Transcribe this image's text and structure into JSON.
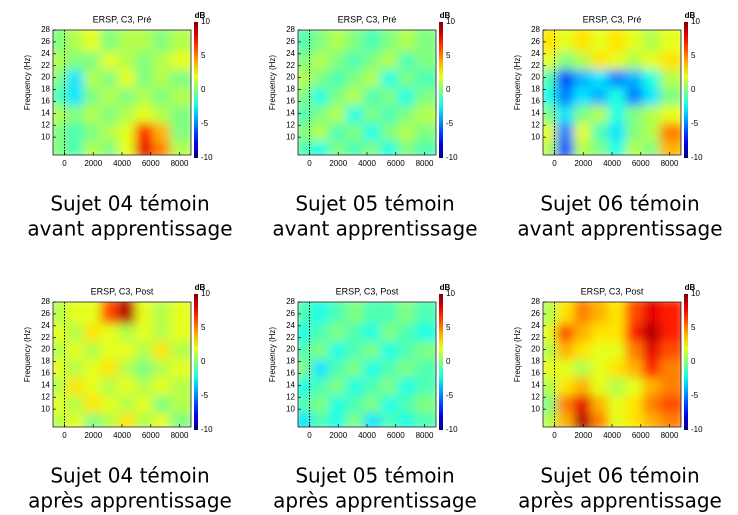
{
  "chart_data": [
    {
      "type": "heatmap",
      "title": "ERSP, C3, Pré",
      "ylabel": "Frequency (Hz)",
      "colorbar_label": "dB",
      "caption": [
        "Sujet 04 témoin",
        "avant apprentissage"
      ],
      "xlim": [
        -800,
        8800
      ],
      "ylim": [
        7,
        28
      ],
      "clim": [
        -10,
        10
      ],
      "xticks": [
        0,
        2000,
        4000,
        6000,
        8000
      ],
      "yticks": [
        10,
        12,
        14,
        16,
        18,
        20,
        22,
        24,
        26,
        28
      ],
      "cticks": [
        10,
        5,
        0,
        -5,
        -10
      ],
      "x": [
        -200,
        1000,
        2200,
        3400,
        4600,
        5800,
        7000,
        8200
      ],
      "y": [
        8.5,
        11.5,
        14.5,
        17.5,
        20.5,
        23.5,
        26.5
      ],
      "z": [
        [
          0,
          -1,
          1,
          0,
          2,
          8,
          5,
          1
        ],
        [
          0,
          -1,
          0,
          1,
          2,
          7,
          4,
          0
        ],
        [
          1,
          0,
          1,
          0,
          1,
          2,
          1,
          0
        ],
        [
          -1,
          -3,
          0,
          1,
          0,
          1,
          0,
          1
        ],
        [
          0,
          -3,
          1,
          0,
          2,
          0,
          1,
          0
        ],
        [
          1,
          0,
          0,
          2,
          1,
          0,
          1,
          2
        ],
        [
          0,
          1,
          2,
          0,
          1,
          1,
          0,
          1
        ]
      ]
    },
    {
      "type": "heatmap",
      "title": "ERSP, C3, Pré",
      "ylabel": "Frequency (Hz)",
      "colorbar_label": "dB",
      "caption": [
        "Sujet 05 témoin",
        "avant apprentissage"
      ],
      "xlim": [
        -800,
        8800
      ],
      "ylim": [
        7,
        28
      ],
      "clim": [
        -10,
        10
      ],
      "xticks": [
        0,
        2000,
        4000,
        6000,
        8000
      ],
      "yticks": [
        10,
        12,
        14,
        16,
        18,
        20,
        22,
        24,
        26,
        28
      ],
      "cticks": [
        10,
        5,
        0,
        -5,
        -10
      ],
      "x": [
        -200,
        1000,
        2200,
        3400,
        4600,
        5800,
        7000,
        8200
      ],
      "y": [
        8.5,
        11.5,
        14.5,
        17.5,
        20.5,
        23.5,
        26.5
      ],
      "z": [
        [
          -1,
          -2,
          0,
          -1,
          0,
          -2,
          0,
          -1
        ],
        [
          0,
          1,
          -1,
          0,
          -2,
          0,
          1,
          0
        ],
        [
          -1,
          0,
          1,
          -2,
          0,
          -1,
          0,
          1
        ],
        [
          0,
          -2,
          0,
          1,
          -1,
          0,
          -2,
          0
        ],
        [
          1,
          0,
          -1,
          0,
          1,
          -2,
          0,
          -1
        ],
        [
          0,
          1,
          0,
          -1,
          0,
          1,
          -1,
          0
        ],
        [
          -1,
          0,
          1,
          0,
          -1,
          0,
          1,
          0
        ]
      ]
    },
    {
      "type": "heatmap",
      "title": "ERSP, C3, Pré",
      "ylabel": "Frequency (Hz)",
      "colorbar_label": "dB",
      "caption": [
        "Sujet 06 témoin",
        "avant apprentissage"
      ],
      "xlim": [
        -800,
        8800
      ],
      "ylim": [
        7,
        28
      ],
      "clim": [
        -10,
        10
      ],
      "xticks": [
        0,
        2000,
        4000,
        6000,
        8000
      ],
      "yticks": [
        10,
        12,
        14,
        16,
        18,
        20,
        22,
        24,
        26,
        28
      ],
      "cticks": [
        10,
        5,
        0,
        -5,
        -10
      ],
      "x": [
        -200,
        1000,
        2200,
        3400,
        4600,
        5800,
        7000,
        8200
      ],
      "y": [
        8.5,
        11.5,
        14.5,
        17.5,
        20.5,
        23.5,
        26.5
      ],
      "z": [
        [
          1,
          -6,
          1,
          0,
          -2,
          1,
          0,
          4
        ],
        [
          2,
          -5,
          2,
          -1,
          -3,
          0,
          1,
          5
        ],
        [
          0,
          -3,
          0,
          1,
          -2,
          0,
          1,
          2
        ],
        [
          -2,
          -5,
          -3,
          -4,
          -2,
          -5,
          -3,
          0
        ],
        [
          -1,
          -6,
          -4,
          -3,
          -5,
          -4,
          -2,
          1
        ],
        [
          2,
          0,
          1,
          3,
          2,
          1,
          2,
          3
        ],
        [
          3,
          2,
          3,
          2,
          3,
          2,
          1,
          2
        ]
      ]
    },
    {
      "type": "heatmap",
      "title": "ERSP, C3, Post",
      "ylabel": "Frequency (Hz)",
      "colorbar_label": "dB",
      "caption": [
        "Sujet 04 témoin",
        "après apprentissage"
      ],
      "xlim": [
        -800,
        8800
      ],
      "ylim": [
        7,
        28
      ],
      "clim": [
        -10,
        10
      ],
      "xticks": [
        0,
        2000,
        4000,
        6000,
        8000
      ],
      "yticks": [
        10,
        12,
        14,
        16,
        18,
        20,
        22,
        24,
        26,
        28
      ],
      "cticks": [
        10,
        5,
        0,
        -5,
        -10
      ],
      "x": [
        -200,
        1000,
        2200,
        3400,
        4600,
        5800,
        7000,
        8200
      ],
      "y": [
        8.5,
        11.5,
        14.5,
        17.5,
        20.5,
        23.5,
        26.5
      ],
      "z": [
        [
          1,
          2,
          0,
          1,
          3,
          1,
          2,
          0
        ],
        [
          2,
          1,
          3,
          2,
          1,
          2,
          0,
          1
        ],
        [
          1,
          3,
          2,
          1,
          2,
          1,
          2,
          1
        ],
        [
          2,
          1,
          2,
          3,
          1,
          0,
          1,
          2
        ],
        [
          1,
          2,
          1,
          2,
          2,
          1,
          3,
          1
        ],
        [
          2,
          1,
          3,
          2,
          1,
          2,
          1,
          2
        ],
        [
          1,
          2,
          2,
          6,
          9,
          2,
          1,
          2
        ]
      ]
    },
    {
      "type": "heatmap",
      "title": "ERSP, C3, Post",
      "ylabel": "Frequency (Hz)",
      "colorbar_label": "dB",
      "caption": [
        "Sujet 05 témoin",
        "après apprentissage"
      ],
      "xlim": [
        -800,
        8800
      ],
      "ylim": [
        7,
        28
      ],
      "clim": [
        -10,
        10
      ],
      "xticks": [
        0,
        2000,
        4000,
        6000,
        8000
      ],
      "yticks": [
        10,
        12,
        14,
        16,
        18,
        20,
        22,
        24,
        26,
        28
      ],
      "cticks": [
        10,
        5,
        0,
        -5,
        -10
      ],
      "x": [
        -200,
        1000,
        2200,
        3400,
        4600,
        5800,
        7000,
        8200
      ],
      "y": [
        8.5,
        11.5,
        14.5,
        17.5,
        20.5,
        23.5,
        26.5
      ],
      "z": [
        [
          -3,
          -1,
          -2,
          0,
          -3,
          -1,
          -2,
          -1
        ],
        [
          -1,
          0,
          -2,
          -1,
          0,
          -2,
          -1,
          0
        ],
        [
          -2,
          -1,
          0,
          -2,
          -1,
          0,
          -2,
          -1
        ],
        [
          0,
          -3,
          -1,
          0,
          -2,
          -1,
          0,
          -1
        ],
        [
          -1,
          0,
          -2,
          -1,
          0,
          -2,
          -1,
          0
        ],
        [
          -2,
          -1,
          0,
          -1,
          -2,
          0,
          -1,
          -2
        ],
        [
          -1,
          -2,
          -1,
          0,
          -1,
          -1,
          0,
          -1
        ]
      ]
    },
    {
      "type": "heatmap",
      "title": "ERSP, C3, Post",
      "ylabel": "Frequency (Hz)",
      "colorbar_label": "dB",
      "caption": [
        "Sujet 06 témoin",
        "après apprentissage"
      ],
      "xlim": [
        -800,
        8800
      ],
      "ylim": [
        7,
        28
      ],
      "clim": [
        -10,
        10
      ],
      "xticks": [
        0,
        2000,
        4000,
        6000,
        8000
      ],
      "yticks": [
        10,
        12,
        14,
        16,
        18,
        20,
        22,
        24,
        26,
        28
      ],
      "cticks": [
        10,
        5,
        0,
        -5,
        -10
      ],
      "x": [
        -200,
        1000,
        2200,
        3400,
        4600,
        5800,
        7000,
        8200
      ],
      "y": [
        8.5,
        11.5,
        14.5,
        17.5,
        20.5,
        23.5,
        26.5
      ],
      "z": [
        [
          1,
          4,
          9,
          5,
          2,
          3,
          4,
          5
        ],
        [
          0,
          5,
          8,
          4,
          2,
          3,
          5,
          6
        ],
        [
          1,
          3,
          4,
          2,
          1,
          2,
          4,
          5
        ],
        [
          2,
          2,
          1,
          2,
          3,
          4,
          7,
          5
        ],
        [
          1,
          4,
          3,
          2,
          2,
          5,
          8,
          6
        ],
        [
          2,
          6,
          4,
          3,
          3,
          7,
          9,
          7
        ],
        [
          1,
          3,
          5,
          4,
          3,
          6,
          8,
          7
        ]
      ]
    }
  ]
}
